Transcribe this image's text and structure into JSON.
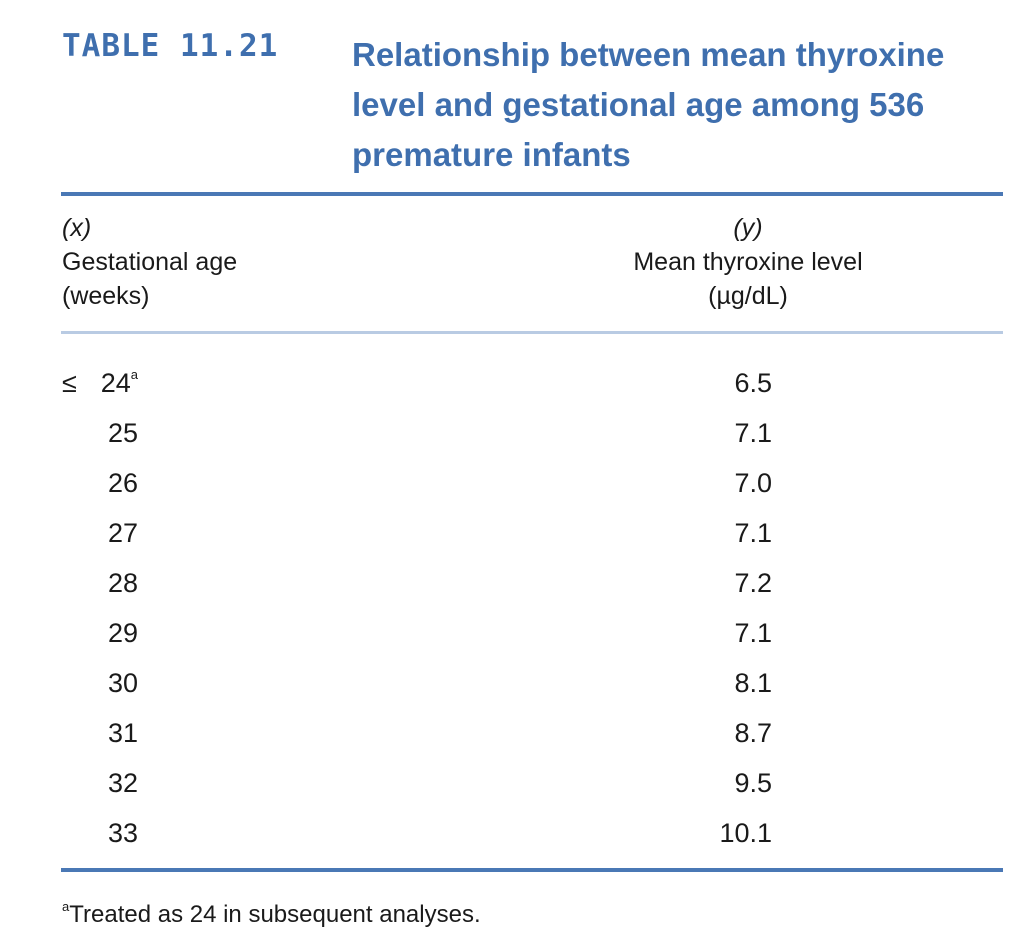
{
  "header": {
    "table_label": "TABLE 11.21",
    "title": "Relationship between mean thyroxine level and gestational age among 536 premature infants"
  },
  "columns": {
    "x": {
      "variable": "(x)",
      "line1": "Gestational age",
      "line2": "(weeks)"
    },
    "y": {
      "variable": "(y)",
      "line1": "Mean thyroxine level",
      "line2": "(µg/dL)"
    }
  },
  "rows": [
    {
      "prefix": "≤",
      "age": "24",
      "mark": "a",
      "thyroxine": "6.5"
    },
    {
      "prefix": "",
      "age": "25",
      "mark": "",
      "thyroxine": "7.1"
    },
    {
      "prefix": "",
      "age": "26",
      "mark": "",
      "thyroxine": "7.0"
    },
    {
      "prefix": "",
      "age": "27",
      "mark": "",
      "thyroxine": "7.1"
    },
    {
      "prefix": "",
      "age": "28",
      "mark": "",
      "thyroxine": "7.2"
    },
    {
      "prefix": "",
      "age": "29",
      "mark": "",
      "thyroxine": "7.1"
    },
    {
      "prefix": "",
      "age": "30",
      "mark": "",
      "thyroxine": "8.1"
    },
    {
      "prefix": "",
      "age": "31",
      "mark": "",
      "thyroxine": "8.7"
    },
    {
      "prefix": "",
      "age": "32",
      "mark": "",
      "thyroxine": "9.5"
    },
    {
      "prefix": "",
      "age": "33",
      "mark": "",
      "thyroxine": "10.1"
    }
  ],
  "footnote": {
    "mark": "a",
    "text": "Treated as 24 in subsequent analyses."
  },
  "colors": {
    "heading": "#3f6fae",
    "rule_strong": "#4a78b5",
    "rule_light": "#b9cbe3"
  }
}
